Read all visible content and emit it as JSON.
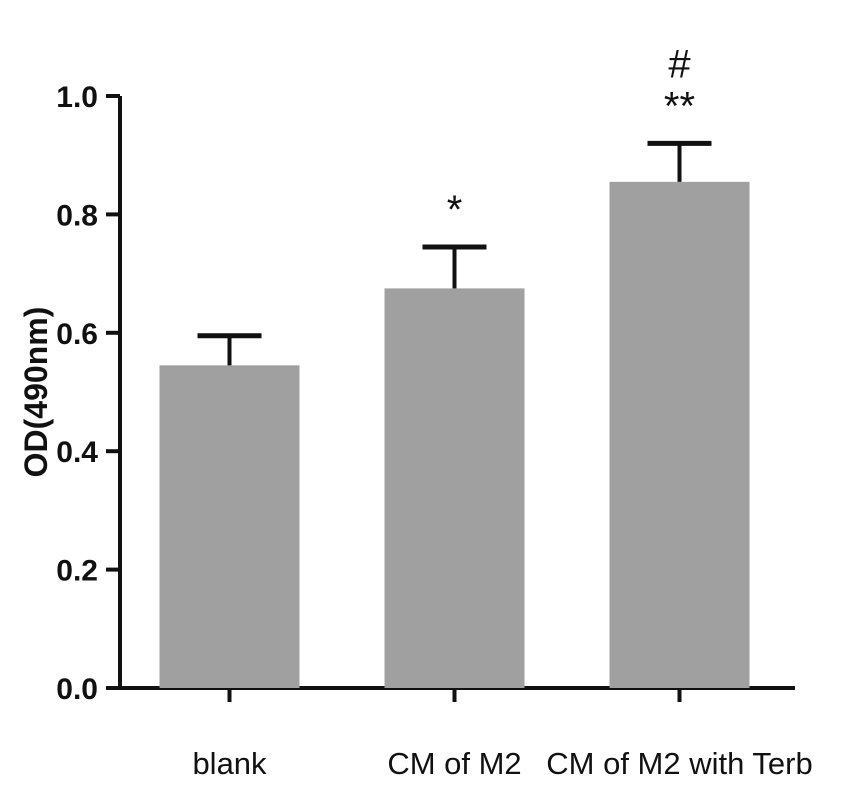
{
  "chart_data": {
    "type": "bar",
    "title": "",
    "xlabel": "",
    "ylabel": "OD(490nm)",
    "ylim": [
      0,
      1.0
    ],
    "yticks": [
      "0.0",
      "0.2",
      "0.4",
      "0.6",
      "0.8",
      "1.0"
    ],
    "categories": [
      "blank",
      "CM of M2",
      "CM of M2 with Terb"
    ],
    "values": [
      0.545,
      0.675,
      0.855
    ],
    "error_upper": [
      0.05,
      0.07,
      0.065
    ],
    "significance": [
      [],
      [
        "*"
      ],
      [
        "**",
        "#"
      ]
    ],
    "bar_color": "#a0a0a0",
    "grid": false
  }
}
